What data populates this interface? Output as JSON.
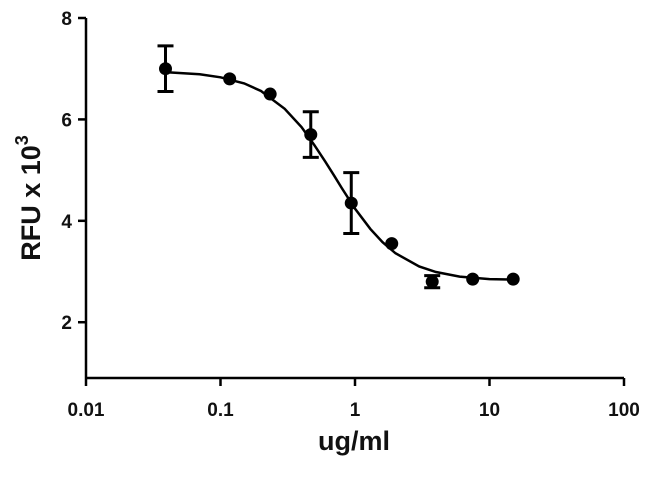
{
  "chart_data": {
    "type": "scatter",
    "x_label": "ug/ml",
    "y_label": "RFU x 10",
    "y_label_superscript": "3",
    "xscale": "log",
    "xlim": [
      0.01,
      100
    ],
    "xticks": [
      0.01,
      0.1,
      1,
      10,
      100
    ],
    "ylim": [
      0.9,
      8
    ],
    "yticks": [
      2,
      4,
      6,
      8
    ],
    "series": [
      {
        "color": "#000000",
        "x": [
          0.039,
          0.117,
          0.234,
          0.469,
          0.938,
          1.875,
          3.75,
          7.5,
          15
        ],
        "y": [
          7.0,
          6.8,
          6.5,
          5.7,
          4.35,
          3.55,
          2.8,
          2.85,
          2.85
        ],
        "errors": [
          0.45,
          null,
          null,
          0.45,
          0.6,
          null,
          0.12,
          null,
          null
        ]
      }
    ],
    "fit": {
      "color": "#000000",
      "x": [
        0.04,
        0.07,
        0.1,
        0.15,
        0.2,
        0.3,
        0.4,
        0.5,
        0.6,
        0.7,
        0.8,
        1,
        1.3,
        1.6,
        2,
        3,
        4,
        6,
        10,
        15
      ],
      "y": [
        6.93,
        6.89,
        6.83,
        6.71,
        6.56,
        6.21,
        5.85,
        5.49,
        5.17,
        4.89,
        4.64,
        4.24,
        3.84,
        3.58,
        3.36,
        3.1,
        2.99,
        2.9,
        2.85,
        2.84
      ]
    }
  }
}
